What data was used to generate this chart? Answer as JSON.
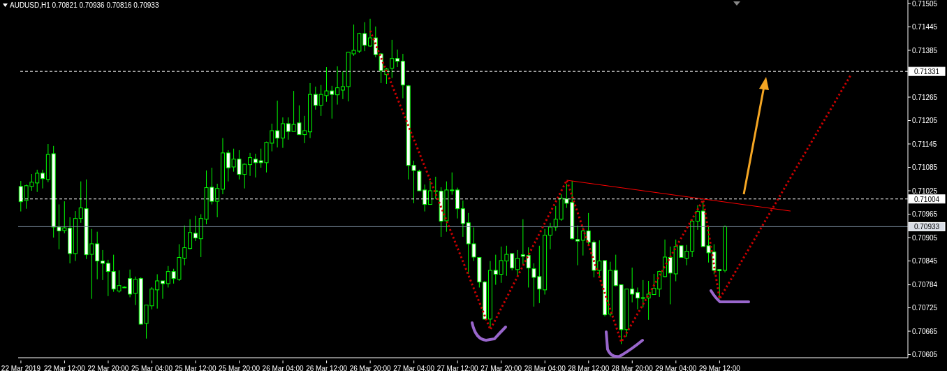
{
  "chart_data": {
    "type": "candlestick",
    "title": "AUDUSD,H1 0.70821 0.70936 0.70816 0.70933",
    "color": "#00ff00",
    "categories": [
      "22 Mar 2019",
      null,
      null,
      null,
      null,
      null,
      null,
      null,
      "22 Mar 12:00",
      null,
      null,
      null,
      null,
      null,
      null,
      null,
      "22 Mar 20:00",
      null,
      null,
      null,
      null,
      null,
      null,
      null,
      "25 Mar 04:00",
      null,
      null,
      null,
      null,
      null,
      null,
      null,
      "25 Mar 12:00",
      null,
      null,
      null,
      null,
      null,
      null,
      null,
      "25 Mar 20:00",
      null,
      null,
      null,
      null,
      null,
      null,
      null,
      "26 Mar 04:00",
      null,
      null,
      null,
      null,
      null,
      null,
      null,
      "26 Mar 12:00",
      null,
      null,
      null,
      null,
      null,
      null,
      null,
      "26 Mar 20:00",
      null,
      null,
      null,
      null,
      null,
      null,
      null,
      "27 Mar 04:00",
      null,
      null,
      null,
      null,
      null,
      null,
      null,
      "27 Mar 12:00",
      null,
      null,
      null,
      null,
      null,
      null,
      null,
      "27 Mar 20:00",
      null,
      null,
      null,
      null,
      null,
      null,
      null,
      "28 Mar 04:00",
      null,
      null,
      null,
      null,
      null,
      null,
      null,
      "28 Mar 12:00",
      null,
      null,
      null,
      null,
      null,
      null,
      null,
      "28 Mar 20:00",
      null,
      null,
      null,
      null,
      null,
      null,
      null,
      "29 Mar 04:00",
      null,
      null,
      null,
      null,
      null,
      null,
      null,
      "29 Mar 12:00",
      null,
      null,
      null,
      null,
      null,
      null,
      null,
      null,
      null,
      null,
      null,
      null,
      null,
      null,
      null,
      null,
      null,
      null,
      null,
      null,
      null,
      null,
      null,
      null,
      null,
      null,
      null,
      null,
      null,
      null,
      null,
      null,
      null,
      null
    ],
    "ohlc": [
      [
        0.71036,
        0.7105,
        0.70972,
        0.70997
      ],
      [
        0.71,
        0.71041,
        0.70979,
        0.71038
      ],
      [
        0.71036,
        0.71068,
        0.71025,
        0.71047
      ],
      [
        0.71045,
        0.71079,
        0.71022,
        0.7107
      ],
      [
        0.7107,
        0.71079,
        0.71031,
        0.71056
      ],
      [
        0.71054,
        0.71145,
        0.71047,
        0.71118
      ],
      [
        0.7112,
        0.7114,
        0.70905,
        0.70932
      ],
      [
        0.70932,
        0.7099,
        0.70875,
        0.70922
      ],
      [
        0.70923,
        0.70998,
        0.70916,
        0.7093
      ],
      [
        0.70929,
        0.70957,
        0.70839,
        0.70864
      ],
      [
        0.70864,
        0.70973,
        0.70845,
        0.70954
      ],
      [
        0.70954,
        0.71049,
        0.70943,
        0.70981
      ],
      [
        0.70979,
        0.71054,
        0.7085,
        0.70861
      ],
      [
        0.70862,
        0.70927,
        0.70748,
        0.70889
      ],
      [
        0.70889,
        0.7092,
        0.70798,
        0.70845
      ],
      [
        0.70845,
        0.70873,
        0.70796,
        0.70839
      ],
      [
        0.70839,
        0.70848,
        0.70755,
        0.70818
      ],
      [
        0.70818,
        0.70861,
        0.70766,
        0.70773
      ],
      [
        0.70768,
        0.70821,
        0.70764,
        0.70782
      ],
      [
        0.70778,
        0.7078,
        0.70777,
        0.70778
      ],
      [
        0.708,
        0.70823,
        0.70752,
        0.7076
      ],
      [
        0.70762,
        0.70805,
        0.70732,
        0.70798
      ],
      [
        0.708,
        0.70803,
        0.70682,
        0.70683
      ],
      [
        0.70685,
        0.70732,
        0.70646,
        0.70732
      ],
      [
        0.7073,
        0.70778,
        0.70721,
        0.70773
      ],
      [
        0.70771,
        0.70811,
        0.70723,
        0.70794
      ],
      [
        0.70794,
        0.70794,
        0.70748,
        0.70787
      ],
      [
        0.70787,
        0.70832,
        0.70777,
        0.70818
      ],
      [
        0.70818,
        0.70825,
        0.70787,
        0.708
      ],
      [
        0.70798,
        0.70888,
        0.70794,
        0.70854
      ],
      [
        0.70852,
        0.70936,
        0.70834,
        0.70879
      ],
      [
        0.70877,
        0.70952,
        0.70875,
        0.70918
      ],
      [
        0.70916,
        0.70961,
        0.70896,
        0.70904
      ],
      [
        0.70902,
        0.70965,
        0.70855,
        0.70954
      ],
      [
        0.70952,
        0.71077,
        0.70939,
        0.71033
      ],
      [
        0.71034,
        0.71084,
        0.7099,
        0.70998
      ],
      [
        0.70998,
        0.71043,
        0.70957,
        0.71031
      ],
      [
        0.71029,
        0.7116,
        0.71016,
        0.71122
      ],
      [
        0.71122,
        0.71129,
        0.71049,
        0.71084
      ],
      [
        0.71086,
        0.71133,
        0.71074,
        0.71106
      ],
      [
        0.71106,
        0.71129,
        0.71054,
        0.71067
      ],
      [
        0.71067,
        0.71095,
        0.71031,
        0.71093
      ],
      [
        0.71092,
        0.71122,
        0.71063,
        0.7111
      ],
      [
        0.71106,
        0.7112,
        0.71059,
        0.71097
      ],
      [
        0.71102,
        0.71133,
        0.71084,
        0.71097
      ],
      [
        0.71097,
        0.71151,
        0.71072,
        0.71149
      ],
      [
        0.71147,
        0.71197,
        0.71126,
        0.71179
      ],
      [
        0.71179,
        0.71256,
        0.71136,
        0.7116
      ],
      [
        0.7116,
        0.71213,
        0.71135,
        0.71197
      ],
      [
        0.71197,
        0.71213,
        0.71156,
        0.71177
      ],
      [
        0.71177,
        0.71281,
        0.71177,
        0.71195
      ],
      [
        0.71199,
        0.71244,
        0.71169,
        0.71169
      ],
      [
        0.71169,
        0.71217,
        0.71147,
        0.71179
      ],
      [
        0.71176,
        0.71301,
        0.7116,
        0.71272
      ],
      [
        0.71272,
        0.71292,
        0.71233,
        0.71244
      ],
      [
        0.71244,
        0.71296,
        0.71217,
        0.71272
      ],
      [
        0.71269,
        0.71342,
        0.71253,
        0.71281
      ],
      [
        0.71281,
        0.71294,
        0.7121,
        0.71272
      ],
      [
        0.71271,
        0.71344,
        0.71246,
        0.71289
      ],
      [
        0.71283,
        0.71331,
        0.7126,
        0.71292
      ],
      [
        0.71292,
        0.7138,
        0.71254,
        0.7138
      ],
      [
        0.71376,
        0.71451,
        0.71371,
        0.71385
      ],
      [
        0.71383,
        0.7143,
        0.71378,
        0.71428
      ],
      [
        0.71428,
        0.71457,
        0.71383,
        0.71398
      ],
      [
        0.71396,
        0.71466,
        0.71394,
        0.71417
      ],
      [
        0.71417,
        0.71446,
        0.71367,
        0.71374
      ],
      [
        0.71376,
        0.71378,
        0.71301,
        0.71333
      ],
      [
        0.71323,
        0.7134,
        0.71299,
        0.71337
      ],
      [
        0.71339,
        0.71412,
        0.71314,
        0.71364
      ],
      [
        0.71364,
        0.71387,
        0.71342,
        0.71357
      ],
      [
        0.71357,
        0.71376,
        0.71262,
        0.71296
      ],
      [
        0.71294,
        0.71296,
        0.71054,
        0.7109
      ],
      [
        0.7109,
        0.71102,
        0.70993,
        0.71077
      ],
      [
        0.71075,
        0.71079,
        0.71025,
        0.71025
      ],
      [
        0.71027,
        0.71041,
        0.70972,
        0.7099
      ],
      [
        0.7099,
        0.7105,
        0.7099,
        0.71025
      ],
      [
        0.71024,
        0.71061,
        0.71004,
        0.71025
      ],
      [
        0.71024,
        0.71034,
        0.70907,
        0.70947
      ],
      [
        0.70948,
        0.71049,
        0.7092,
        0.71027
      ],
      [
        0.71027,
        0.71072,
        0.71015,
        0.71026
      ],
      [
        0.71027,
        0.71033,
        0.70954,
        0.70979
      ],
      [
        0.70979,
        0.71,
        0.70907,
        0.70941
      ],
      [
        0.70943,
        0.70968,
        0.70812,
        0.70889
      ],
      [
        0.70889,
        0.70931,
        0.70845,
        0.70855
      ],
      [
        0.70854,
        0.70855,
        0.70777,
        0.70791
      ],
      [
        0.70791,
        0.70794,
        0.70694,
        0.70696
      ],
      [
        0.70696,
        0.70845,
        0.70676,
        0.70821
      ],
      [
        0.70821,
        0.70861,
        0.70784,
        0.70811
      ],
      [
        0.70811,
        0.70882,
        0.70789,
        0.70846
      ],
      [
        0.70845,
        0.70884,
        0.70807,
        0.70862
      ],
      [
        0.70864,
        0.70864,
        0.70821,
        0.70827
      ],
      [
        0.70823,
        0.70873,
        0.70805,
        0.70852
      ],
      [
        0.70861,
        0.70952,
        0.70837,
        0.70857
      ],
      [
        0.70859,
        0.7088,
        0.70777,
        0.70827
      ],
      [
        0.70825,
        0.70839,
        0.70728,
        0.70803
      ],
      [
        0.70805,
        0.70884,
        0.70737,
        0.70773
      ],
      [
        0.70771,
        0.70927,
        0.70759,
        0.70911
      ],
      [
        0.70911,
        0.70943,
        0.70875,
        0.70932
      ],
      [
        0.70932,
        0.70986,
        0.70922,
        0.70952
      ],
      [
        0.70952,
        0.71016,
        0.70948,
        0.71006
      ],
      [
        0.71004,
        0.71043,
        0.70981,
        0.70993
      ],
      [
        0.70995,
        0.7105,
        0.709,
        0.70902
      ],
      [
        0.709,
        0.70936,
        0.70834,
        0.70896
      ],
      [
        0.70898,
        0.70931,
        0.70859,
        0.70922
      ],
      [
        0.70922,
        0.70968,
        0.70884,
        0.70893
      ],
      [
        0.70893,
        0.70898,
        0.70803,
        0.70821
      ],
      [
        0.70821,
        0.70898,
        0.70802,
        0.70845
      ],
      [
        0.70846,
        0.70846,
        0.70703,
        0.70707
      ],
      [
        0.70709,
        0.70843,
        0.70703,
        0.70821
      ],
      [
        0.70821,
        0.70861,
        0.7078,
        0.70782
      ],
      [
        0.70784,
        0.70784,
        0.70632,
        0.70669
      ],
      [
        0.70669,
        0.70773,
        0.70651,
        0.70773
      ],
      [
        0.70773,
        0.70828,
        0.70739,
        0.7076
      ],
      [
        0.70764,
        0.70777,
        0.70721,
        0.7075
      ],
      [
        0.7075,
        0.70796,
        0.70726,
        0.70751
      ],
      [
        0.7075,
        0.70794,
        0.70694,
        0.7076
      ],
      [
        0.70759,
        0.70812,
        0.70759,
        0.70775
      ],
      [
        0.70773,
        0.7082,
        0.70753,
        0.70818
      ],
      [
        0.70805,
        0.709,
        0.70803,
        0.70855
      ],
      [
        0.70854,
        0.70882,
        0.70734,
        0.70814
      ],
      [
        0.70812,
        0.709,
        0.70793,
        0.70882
      ],
      [
        0.70884,
        0.70884,
        0.70854,
        0.70854
      ],
      [
        0.70852,
        0.70886,
        0.70834,
        0.7087
      ],
      [
        0.7087,
        0.70952,
        0.70855,
        0.70947
      ],
      [
        0.70947,
        0.70988,
        0.70925,
        0.70972
      ],
      [
        0.70973,
        0.71,
        0.70882,
        0.70882
      ],
      [
        0.70884,
        0.70932,
        0.70841,
        0.70866
      ],
      [
        0.70868,
        0.70888,
        0.70811,
        0.70821
      ],
      [
        0.70823,
        0.70823,
        0.70748,
        0.7082
      ],
      [
        0.70821,
        0.70936,
        0.70816,
        0.70933
      ],
      null,
      null,
      null,
      null,
      null,
      null,
      null,
      null,
      null,
      null,
      null,
      null,
      null,
      null,
      null,
      null,
      null,
      null,
      null,
      null,
      null,
      null,
      null,
      null,
      null,
      null,
      null,
      null,
      null,
      null,
      null,
      null,
      null
    ],
    "series": [
      {
        "type": "line",
        "color": "#cc0000",
        "line_style": "dotted",
        "values": [
          null,
          null,
          null,
          null,
          null,
          null,
          null,
          null,
          null,
          null,
          null,
          null,
          null,
          null,
          null,
          null,
          null,
          null,
          null,
          null,
          null,
          null,
          null,
          null,
          null,
          null,
          null,
          null,
          null,
          null,
          null,
          null,
          null,
          null,
          null,
          null,
          null,
          null,
          null,
          null,
          null,
          null,
          null,
          null,
          null,
          null,
          null,
          null,
          null,
          null,
          null,
          null,
          null,
          null,
          null,
          null,
          null,
          null,
          null,
          null,
          null,
          null,
          null,
          null,
          0.71435,
          null,
          null,
          null,
          null,
          null,
          null,
          null,
          null,
          null,
          null,
          null,
          null,
          null,
          null,
          null,
          null,
          null,
          null,
          null,
          null,
          null,
          0.70669,
          null,
          null,
          null,
          null,
          null,
          null,
          null,
          null,
          null,
          null,
          null,
          null,
          null,
          0.71052,
          null,
          null,
          null,
          null,
          null,
          null,
          null,
          null,
          null,
          0.70637,
          null,
          null,
          null,
          null,
          null,
          null,
          null,
          null,
          null,
          null,
          null,
          null,
          null,
          null,
          0.71002,
          null,
          null,
          0.70748,
          null,
          null,
          null,
          null,
          null,
          null,
          null,
          null,
          null,
          null,
          null,
          null,
          null,
          null,
          null,
          null,
          null,
          null,
          null,
          null,
          null,
          null,
          null,
          0.71321,
          null,
          null,
          null,
          null,
          null,
          null,
          null,
          null,
          null,
          null
        ]
      },
      {
        "type": "line",
        "color": "#ff0000",
        "line_style": "solid",
        "values": [
          null,
          null,
          null,
          null,
          null,
          null,
          null,
          null,
          null,
          null,
          null,
          null,
          null,
          null,
          null,
          null,
          null,
          null,
          null,
          null,
          null,
          null,
          null,
          null,
          null,
          null,
          null,
          null,
          null,
          null,
          null,
          null,
          null,
          null,
          null,
          null,
          null,
          null,
          null,
          null,
          null,
          null,
          null,
          null,
          null,
          null,
          null,
          null,
          null,
          null,
          null,
          null,
          null,
          null,
          null,
          null,
          null,
          null,
          null,
          null,
          null,
          null,
          null,
          null,
          null,
          null,
          null,
          null,
          null,
          null,
          null,
          null,
          null,
          null,
          null,
          null,
          null,
          null,
          null,
          null,
          null,
          null,
          null,
          null,
          null,
          null,
          null,
          null,
          null,
          null,
          null,
          null,
          null,
          null,
          null,
          null,
          null,
          null,
          null,
          null,
          0.71052,
          null,
          null,
          null,
          null,
          null,
          null,
          null,
          null,
          null,
          null,
          null,
          null,
          null,
          null,
          null,
          null,
          null,
          null,
          null,
          null,
          null,
          null,
          null,
          null,
          null,
          null,
          null,
          null,
          null,
          null,
          null,
          null,
          null,
          null,
          null,
          null,
          null,
          null,
          null,
          null,
          0.70973,
          null,
          null,
          null,
          null,
          null,
          null,
          null,
          null,
          null,
          null,
          null,
          null,
          null,
          null,
          null,
          null,
          null,
          null,
          null,
          null,
          null
        ]
      }
    ],
    "ylim": [
      0.70597,
      0.71514
    ],
    "yticks": [
      0.70605,
      0.70665,
      0.70725,
      0.70784,
      0.70845,
      0.70905,
      0.70965,
      0.71025,
      0.71085,
      0.71145,
      0.71205,
      0.71265,
      0.71385,
      0.71445,
      0.71505
    ],
    "ref_lines": [
      {
        "axis": "y",
        "value": 0.71331,
        "label": "0.71331",
        "color": "#ffffff",
        "line_style": "dashed"
      },
      {
        "axis": "y",
        "value": 0.71004,
        "label": "0.71004",
        "color": "#ffffff",
        "line_style": "dashed"
      },
      {
        "axis": "y",
        "value": 0.70933,
        "label": "0.70933",
        "color": "#778899",
        "line_style": "solid"
      }
    ],
    "marker": "none",
    "grid": false,
    "legend": false
  }
}
